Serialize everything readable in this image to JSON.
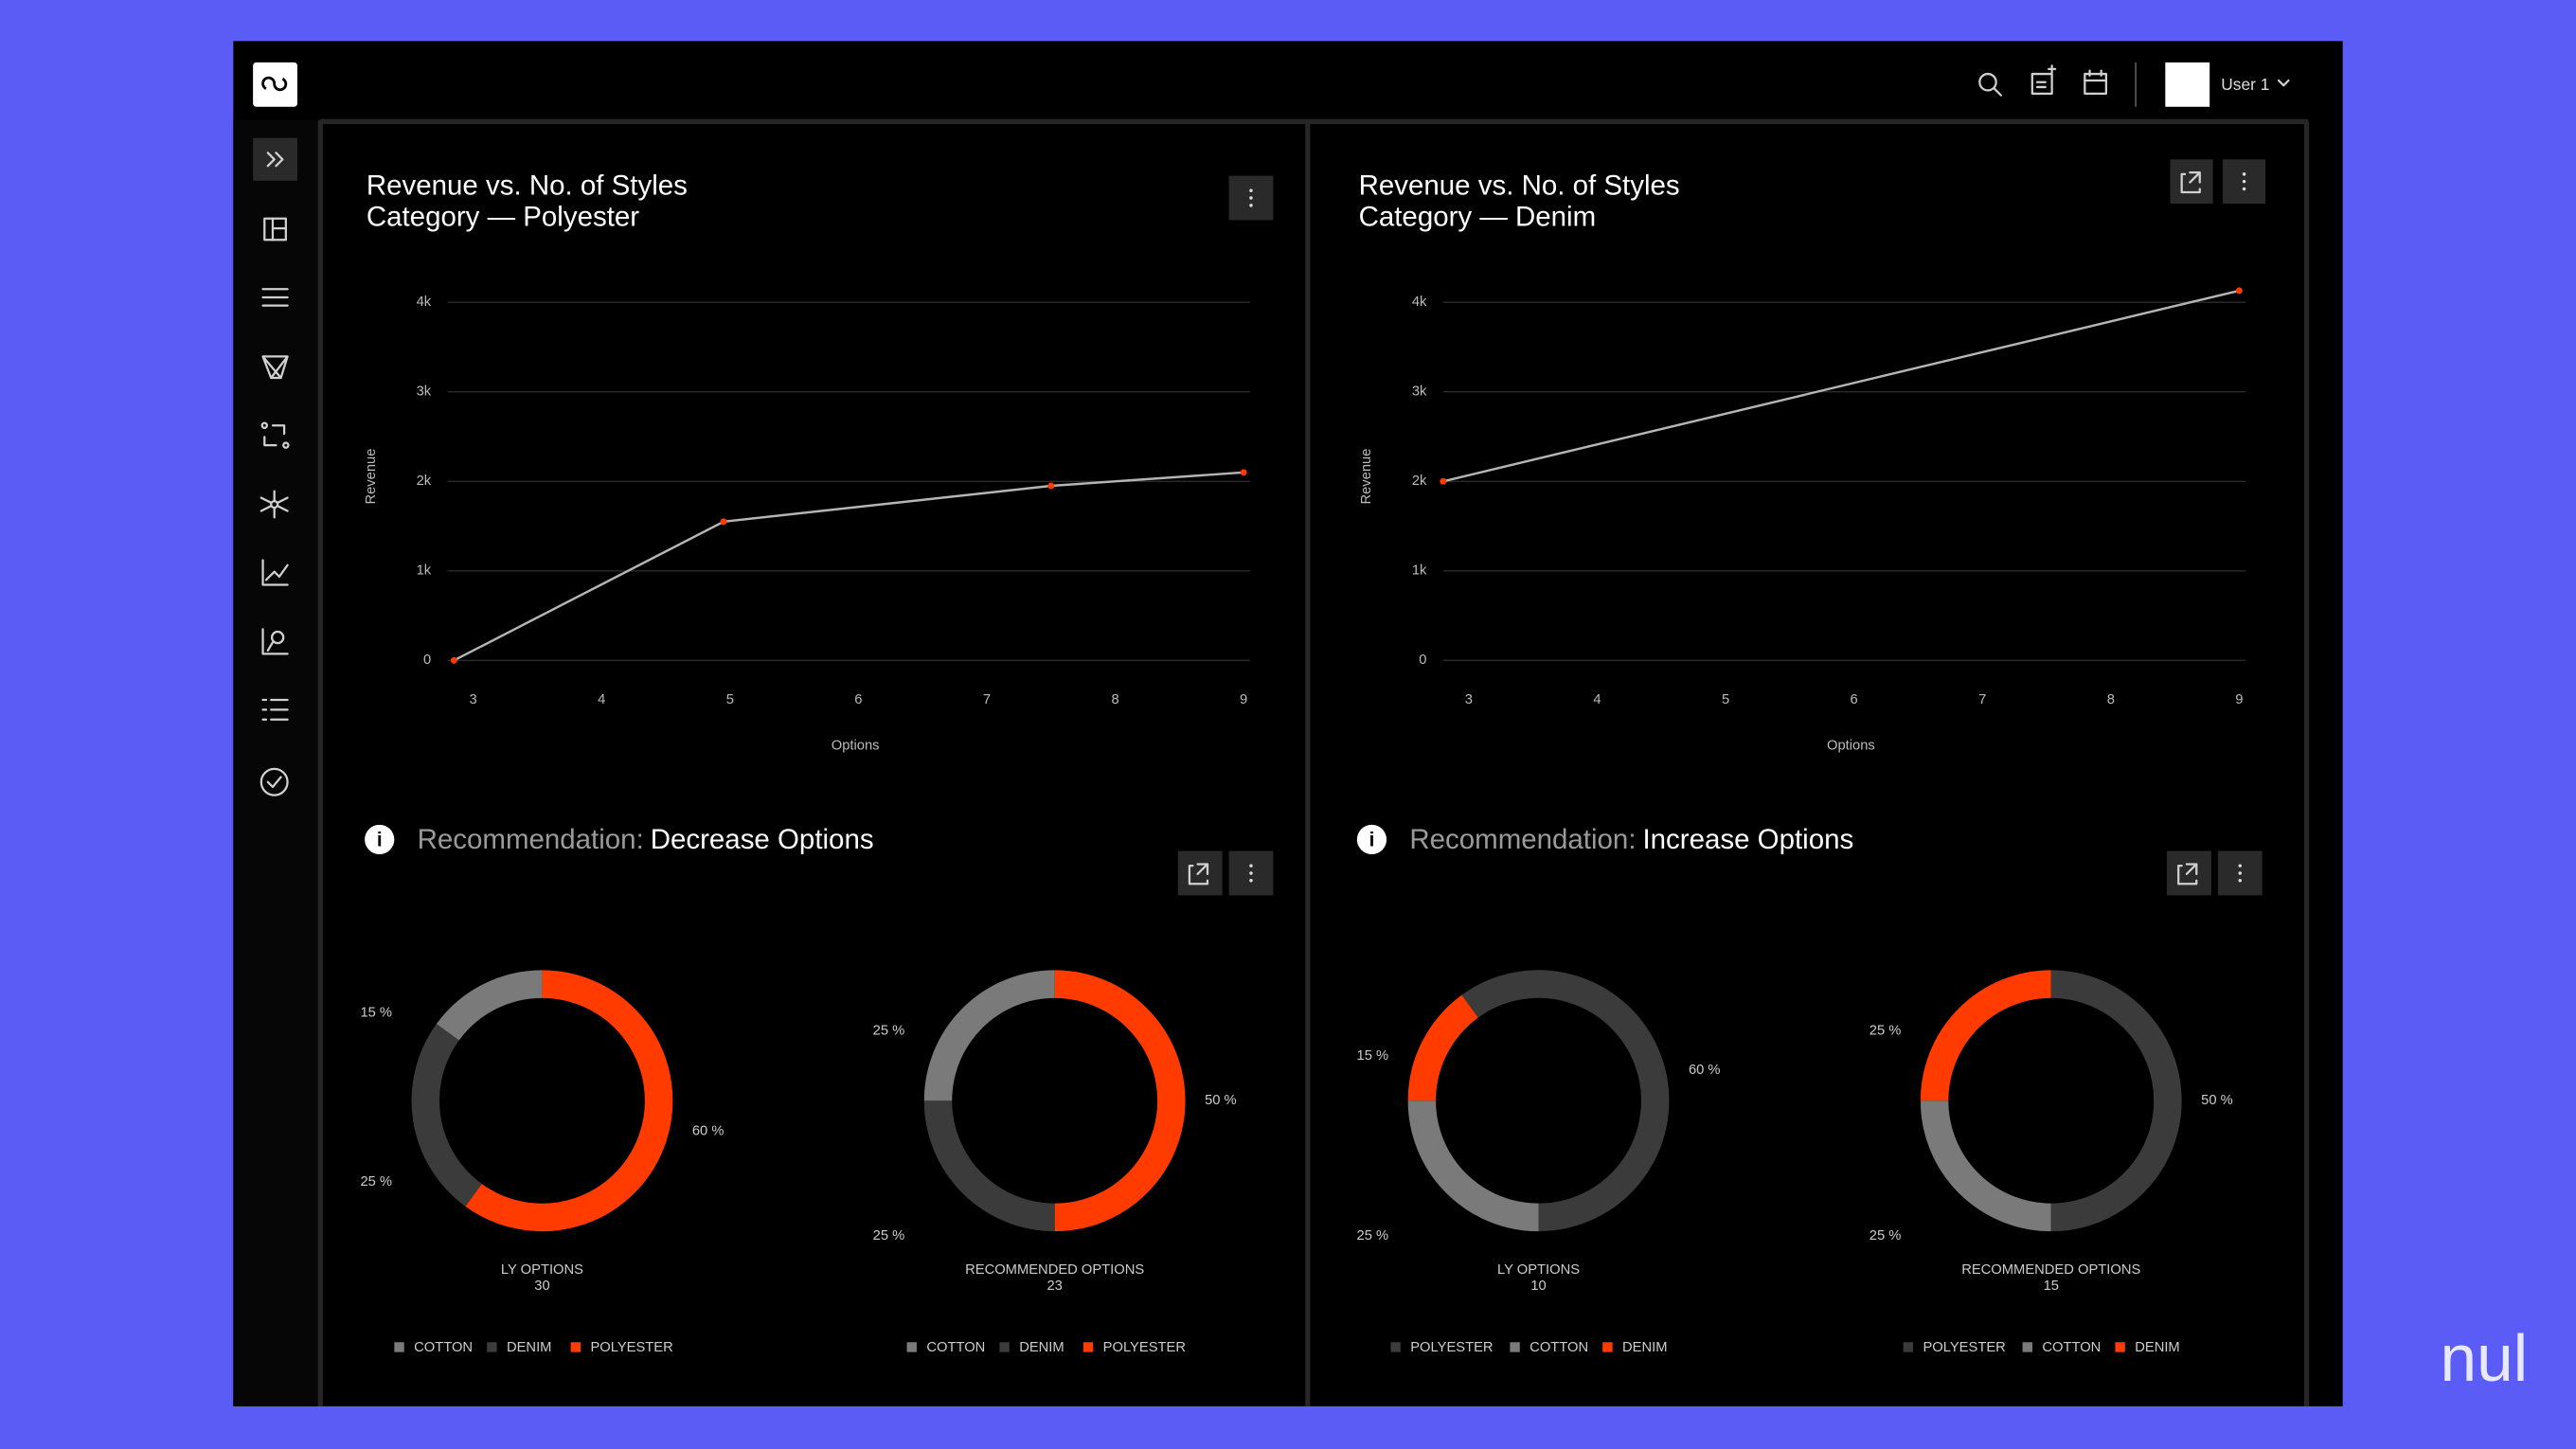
{
  "header": {
    "user": "User 1"
  },
  "watermark": "nul",
  "panels": [
    {
      "title": "Revenue vs. No. of Styles",
      "subtitle": "Category — Polyester",
      "chart": {
        "type": "line",
        "xlabel": "Options",
        "ylabel": "Revenue",
        "x": [
          2.85,
          4.95,
          7.5,
          9
        ],
        "values": [
          0,
          1550,
          1950,
          2100
        ],
        "color": "#b5b5b5",
        "marker_color": "#ff3b00",
        "xlim": [
          2.8,
          9.05
        ],
        "ylim": [
          0,
          4000
        ],
        "xticks": [
          3,
          4,
          5,
          6,
          7,
          8,
          9
        ],
        "yticks": [
          0,
          {
            "value": 1000,
            "label": "1k"
          },
          {
            "value": 2000,
            "label": "2k"
          },
          {
            "value": 3000,
            "label": "3k"
          },
          {
            "value": 4000,
            "label": "4k"
          }
        ],
        "grid": true
      },
      "recommendation": {
        "label": "Recommendation:",
        "value": "Decrease Options"
      },
      "donuts": [
        {
          "type": "donut",
          "title": "LY OPTIONS",
          "total": 30,
          "categories": [
            "COTTON",
            "DENIM",
            "POLYESTER"
          ],
          "values": [
            15,
            25,
            60
          ],
          "value_labels": [
            "15 %",
            "25 %",
            "60 %"
          ],
          "colors": [
            "#7a7a7a",
            "#3b3b3b",
            "#ff3b00"
          ]
        },
        {
          "type": "donut",
          "title": "RECOMMENDED OPTIONS",
          "total": 23,
          "categories": [
            "COTTON",
            "DENIM",
            "POLYESTER"
          ],
          "values": [
            25,
            25,
            50
          ],
          "value_labels": [
            "25 %",
            "25 %",
            "50 %"
          ],
          "colors": [
            "#7a7a7a",
            "#3b3b3b",
            "#ff3b00"
          ]
        }
      ]
    },
    {
      "title": "Revenue vs. No. of Styles",
      "subtitle": "Category — Denim",
      "chart": {
        "type": "line",
        "xlabel": "Options",
        "ylabel": "Revenue",
        "x": [
          2.8,
          9
        ],
        "values": [
          2000,
          4130
        ],
        "color": "#b5b5b5",
        "marker_color": "#ff3b00",
        "xlim": [
          2.8,
          9.05
        ],
        "ylim": [
          0,
          4000
        ],
        "xticks": [
          3,
          4,
          5,
          6,
          7,
          8,
          9
        ],
        "yticks": [
          0,
          {
            "value": 1000,
            "label": "1k"
          },
          {
            "value": 2000,
            "label": "2k"
          },
          {
            "value": 3000,
            "label": "3k"
          },
          {
            "value": 4000,
            "label": "4k"
          }
        ],
        "grid": true
      },
      "recommendation": {
        "label": "Recommendation:",
        "value": "Increase Options"
      },
      "donuts": [
        {
          "type": "donut",
          "title": "LY OPTIONS",
          "total": 10,
          "categories": [
            "POLYESTER",
            "COTTON",
            "DENIM"
          ],
          "values": [
            60,
            25,
            15
          ],
          "value_labels": [
            "60 %",
            "25 %",
            "15 %"
          ],
          "colors": [
            "#3b3b3b",
            "#7a7a7a",
            "#ff3b00"
          ]
        },
        {
          "type": "donut",
          "title": "RECOMMENDED OPTIONS",
          "total": 15,
          "categories": [
            "POLYESTER",
            "COTTON",
            "DENIM"
          ],
          "values": [
            50,
            25,
            25
          ],
          "value_labels": [
            "50 %",
            "25 %",
            "25 %"
          ],
          "colors": [
            "#3b3b3b",
            "#7a7a7a",
            "#ff3b00"
          ]
        }
      ]
    }
  ]
}
